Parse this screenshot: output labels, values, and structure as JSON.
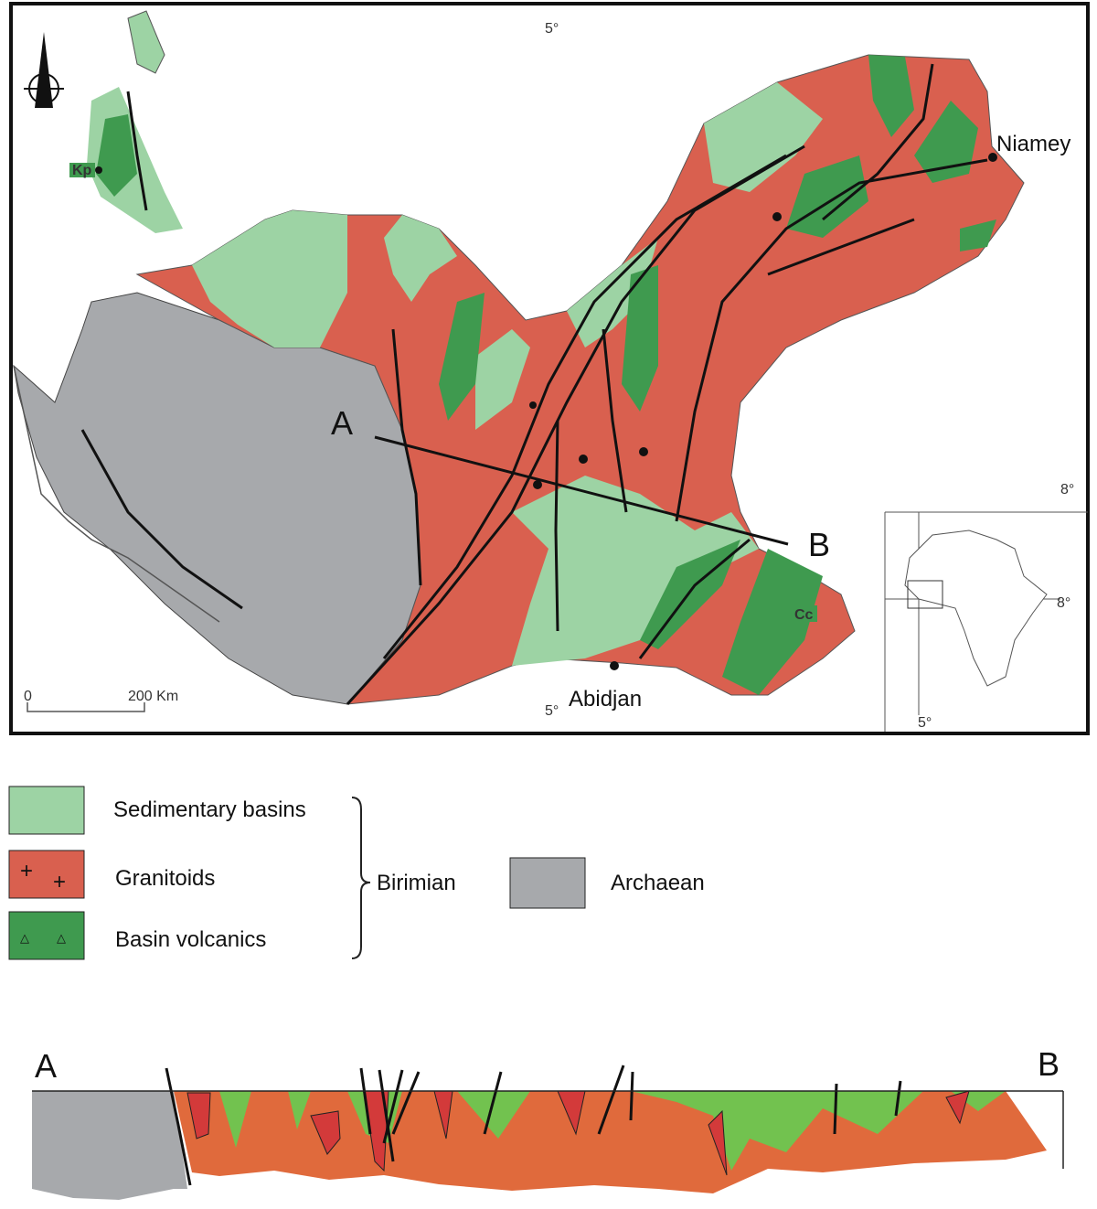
{
  "map": {
    "graticule": {
      "top_lon": "5°",
      "bottom_lon": "5°",
      "right_lat": "8°"
    },
    "places": {
      "niamey": "Niamey",
      "abidjan": "Abidjan"
    },
    "units": {
      "kp": "Kp",
      "cc": "Cc"
    },
    "profile": {
      "start": "A",
      "end": "B"
    },
    "scale": {
      "zero": "0",
      "length": "200 Km"
    },
    "inset": {
      "lat": "8°",
      "lon": "5°"
    }
  },
  "legend": {
    "items": [
      "Sedimentary basins",
      "Granitoids",
      "Basin volcanics"
    ],
    "group": "Birimian",
    "archaean": "Archaean"
  },
  "cross_section": {
    "start": "A",
    "end": "B"
  }
}
